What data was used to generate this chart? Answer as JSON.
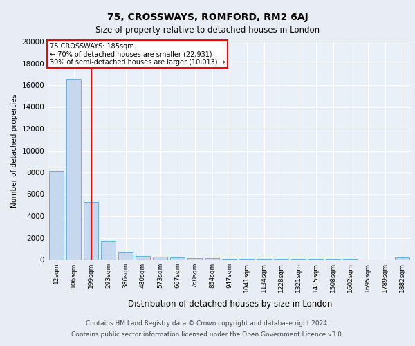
{
  "title_line1": "75, CROSSWAYS, ROMFORD, RM2 6AJ",
  "title_line2": "Size of property relative to detached houses in London",
  "xlabel": "Distribution of detached houses by size in London",
  "ylabel": "Number of detached properties",
  "bar_labels": [
    "12sqm",
    "106sqm",
    "199sqm",
    "293sqm",
    "386sqm",
    "480sqm",
    "573sqm",
    "667sqm",
    "760sqm",
    "854sqm",
    "947sqm",
    "1041sqm",
    "1134sqm",
    "1228sqm",
    "1321sqm",
    "1415sqm",
    "1508sqm",
    "1602sqm",
    "1695sqm",
    "1789sqm",
    "1882sqm"
  ],
  "bar_values": [
    8100,
    16600,
    5300,
    1700,
    700,
    310,
    270,
    190,
    140,
    100,
    75,
    65,
    55,
    50,
    45,
    40,
    38,
    35,
    30,
    28,
    200
  ],
  "bar_color": "#c5d8ee",
  "bar_edge_color": "#6baed6",
  "red_line_index": 2,
  "annotation_text": "75 CROSSWAYS: 185sqm\n← 70% of detached houses are smaller (22,931)\n30% of semi-detached houses are larger (10,013) →",
  "annotation_box_color": "white",
  "annotation_box_edge": "red",
  "footer_line1": "Contains HM Land Registry data © Crown copyright and database right 2024.",
  "footer_line2": "Contains public sector information licensed under the Open Government Licence v3.0.",
  "ylim": [
    0,
    20000
  ],
  "yticks": [
    0,
    2000,
    4000,
    6000,
    8000,
    10000,
    12000,
    14000,
    16000,
    18000,
    20000
  ],
  "background_color": "#e8edf4",
  "plot_bg_color": "#eaf0f8",
  "grid_color": "white",
  "fig_width": 6.0,
  "fig_height": 5.0,
  "dpi": 100
}
